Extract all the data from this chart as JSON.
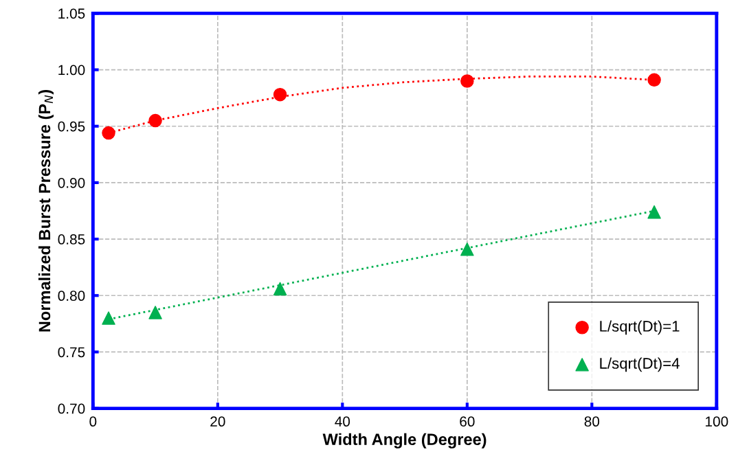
{
  "chart_data": {
    "type": "scatter",
    "xlabel": "Width Angle (Degree)",
    "ylabel": "Normalized Burst Pressure (P$_{N}$)",
    "xlim": [
      0,
      100
    ],
    "xticks": [
      0,
      20,
      40,
      60,
      80,
      100
    ],
    "ylim": [
      0.7,
      1.05
    ],
    "yticks": [
      {
        "value": 0.7,
        "label": "0.70"
      },
      {
        "value": 0.75,
        "label": "0.75"
      },
      {
        "value": 0.8,
        "label": "0.80"
      },
      {
        "value": 0.85,
        "label": "0.85"
      },
      {
        "value": 0.9,
        "label": "0.90"
      },
      {
        "value": 0.95,
        "label": "0.95"
      },
      {
        "value": 1.0,
        "label": "1.00"
      },
      {
        "value": 1.05,
        "label": "1.05"
      }
    ],
    "grid": true,
    "legend": "bottom right",
    "series": [
      {
        "name": "L/sqrt(Dt)=1",
        "color": "#ff0000",
        "marker": "circle",
        "x": [
          2.5,
          10,
          30,
          60,
          90
        ],
        "values": [
          0.944,
          0.955,
          0.978,
          0.99,
          0.991
        ]
      },
      {
        "name": "L/sqrt(Dt)=4",
        "color": "#00b050",
        "marker": "triangle",
        "x": [
          2.5,
          10,
          30,
          60,
          90
        ],
        "values": [
          0.78,
          0.785,
          0.806,
          0.841,
          0.874
        ]
      },
      {
        "type": "line",
        "color": "#ff0000",
        "line_style": "dotted",
        "x": [
          2.5,
          10,
          20,
          30,
          40,
          50,
          60,
          70,
          80,
          90
        ],
        "values": [
          0.944,
          0.955,
          0.966,
          0.976,
          0.984,
          0.989,
          0.992,
          0.994,
          0.994,
          0.991
        ]
      },
      {
        "type": "line",
        "color": "#00b050",
        "line_style": "dotted",
        "x": [
          2.5,
          90
        ],
        "values": [
          0.779,
          0.875
        ]
      }
    ]
  }
}
